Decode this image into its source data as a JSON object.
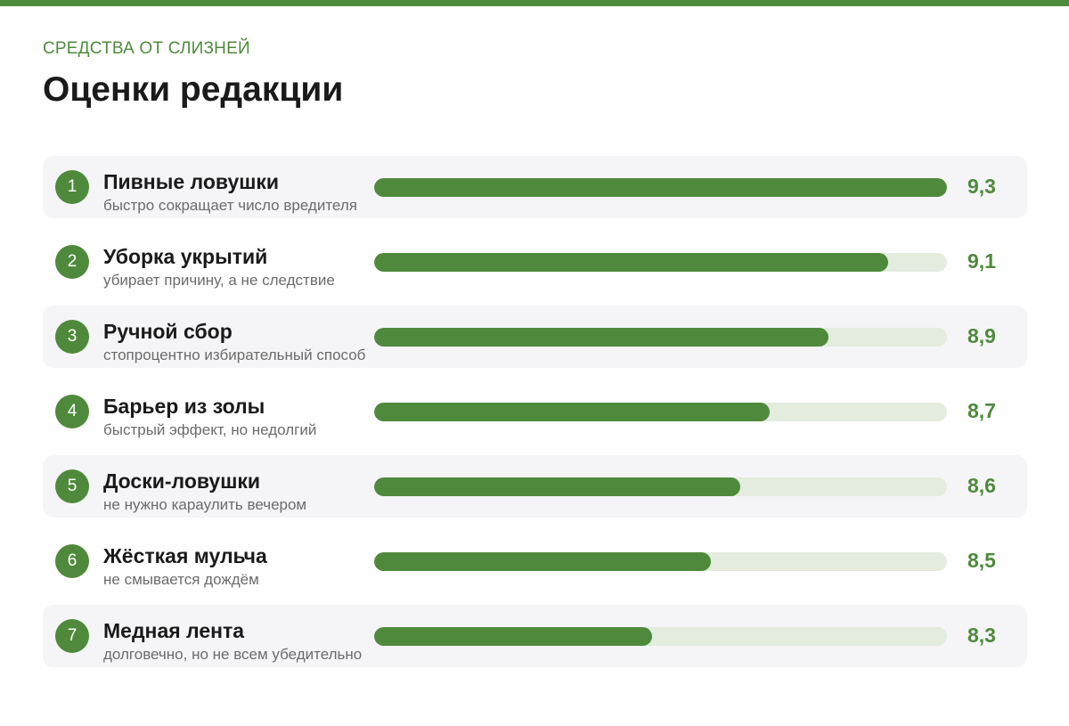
{
  "header": {
    "kicker": "СРЕДСТВА ОТ СЛИЗНЕЙ",
    "title": "Оценки редакции"
  },
  "colors": {
    "accent": "#4f8a3c",
    "track": "#e3ecdf",
    "row_alt_background": "#f5f5f7"
  },
  "chart_data": {
    "type": "bar",
    "orientation": "horizontal",
    "title": "Оценки редакции",
    "xlim": [
      0,
      9.3
    ],
    "grid": false,
    "legend": "none",
    "items": [
      {
        "rank": "1",
        "name": "Пивные ловушки",
        "description": "быстро сокращает число вредителя",
        "value": 9.3,
        "value_label": "9,3"
      },
      {
        "rank": "2",
        "name": "Уборка укрытий",
        "description": "убирает причину, а не следствие",
        "value": 9.1,
        "value_label": "9,1"
      },
      {
        "rank": "3",
        "name": "Ручной сбор",
        "description": "стопроцентно избирательный способ",
        "value": 8.9,
        "value_label": "8,9"
      },
      {
        "rank": "4",
        "name": "Барьер из золы",
        "description": "быстрый эффект, но недолгий",
        "value": 8.7,
        "value_label": "8,7"
      },
      {
        "rank": "5",
        "name": "Доски-ловушки",
        "description": "не нужно караулить вечером",
        "value": 8.6,
        "value_label": "8,6"
      },
      {
        "rank": "6",
        "name": "Жёсткая мульча",
        "description": "не смывается дождём",
        "value": 8.5,
        "value_label": "8,5"
      },
      {
        "rank": "7",
        "name": "Медная лента",
        "description": "долговечно, но не всем убедительно",
        "value": 8.3,
        "value_label": "8,3"
      }
    ]
  }
}
